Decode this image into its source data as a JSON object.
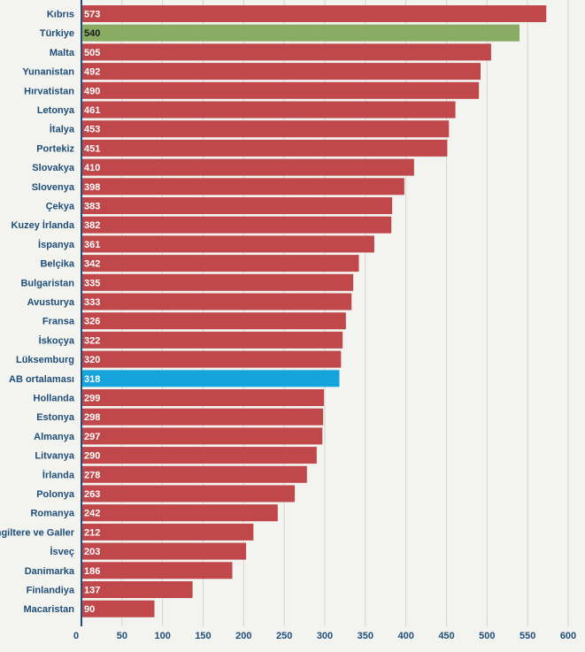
{
  "chart_data": {
    "type": "bar",
    "orientation": "horizontal",
    "categories": [
      "Kıbrıs",
      "Türkiye",
      "Malta",
      "Yunanistan",
      "Hırvatistan",
      "Letonya",
      "İtalya",
      "Portekiz",
      "Slovakya",
      "Slovenya",
      "Çekya",
      "Kuzey İrlanda",
      "İspanya",
      "Belçika",
      "Bulgaristan",
      "Avusturya",
      "Fransa",
      "İskoçya",
      "Lüksemburg",
      "AB ortalaması",
      "Hollanda",
      "Estonya",
      "Almanya",
      "Litvanya",
      "İrlanda",
      "Polonya",
      "Romanya",
      "İngiltere ve Galler",
      "İsveç",
      "Danimarka",
      "Finlandiya",
      "Macaristan"
    ],
    "values": [
      573,
      540,
      505,
      492,
      490,
      461,
      453,
      451,
      410,
      398,
      383,
      382,
      361,
      342,
      335,
      333,
      326,
      322,
      320,
      318,
      299,
      298,
      297,
      290,
      278,
      263,
      242,
      212,
      203,
      186,
      137,
      90
    ],
    "xlim": [
      0,
      600
    ],
    "xticks": [
      0,
      50,
      100,
      150,
      200,
      250,
      300,
      350,
      400,
      450,
      500,
      550,
      600
    ],
    "grid": true,
    "colors": {
      "default": "#c0474a",
      "highlight_turkey": "#8aab63",
      "highlight_eu": "#15a5dc",
      "axis": "#1f4e79",
      "label_default": "#ffffff",
      "label_turkey": "#1a1a1a"
    }
  }
}
